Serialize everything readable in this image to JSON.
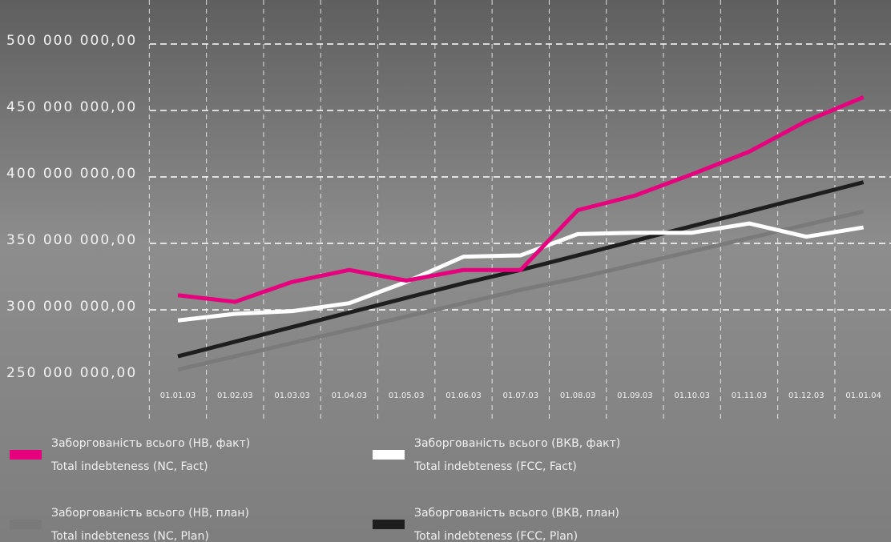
{
  "chart_data": {
    "type": "line",
    "categories": [
      "01.01.03",
      "01.02.03",
      "01.03.03",
      "01.04.03",
      "01.05.03",
      "01.06.03",
      "01.07.03",
      "01.08.03",
      "01.09.03",
      "01.10.03",
      "01.11.03",
      "01.12.03",
      "01.01.04"
    ],
    "ylim": [
      250000000,
      500000000
    ],
    "yticks": [
      {
        "value": 250000000,
        "label": "250 000 000,00"
      },
      {
        "value": 300000000,
        "label": "300 000 000,00"
      },
      {
        "value": 350000000,
        "label": "350 000 000,00"
      },
      {
        "value": 400000000,
        "label": "400 000 000,00"
      },
      {
        "value": 450000000,
        "label": "450 000 000,00"
      },
      {
        "value": 500000000,
        "label": "500 000 000,00"
      }
    ],
    "grid": true,
    "series": [
      {
        "name": "Заборгованість всього (НВ, факт)",
        "name_en": "Total indebteness (NC, Fact)",
        "color": "#e6007e",
        "values": [
          311000000,
          306000000,
          321000000,
          330000000,
          322000000,
          330000000,
          330000000,
          375000000,
          386000000,
          402000000,
          419000000,
          442000000,
          460000000
        ]
      },
      {
        "name": "Заборгованість всього (ВКВ, факт)",
        "name_en": "Total indebteness (FCC, Fact)",
        "color": "#ffffff",
        "values": [
          292000000,
          297000000,
          299000000,
          305000000,
          321000000,
          340000000,
          341000000,
          357000000,
          358000000,
          358000000,
          365000000,
          355000000,
          362000000
        ]
      },
      {
        "name": "Заборгованість всього (НВ, план)",
        "name_en": "Total indebteness (NC, Plan)",
        "color": "#7a7a7a",
        "values": [
          255000000,
          265000000,
          275000000,
          285000000,
          295000000,
          305000000,
          315000000,
          324000000,
          334000000,
          344000000,
          354000000,
          364000000,
          374000000
        ]
      },
      {
        "name": "Заборгованість всього (ВКВ, план)",
        "name_en": "Total indebteness (FCC, Plan)",
        "color": "#1e1e1e",
        "values": [
          265000000,
          276000000,
          287000000,
          298000000,
          309000000,
          320000000,
          330000000,
          341000000,
          352000000,
          363000000,
          374000000,
          385000000,
          396000000
        ]
      }
    ]
  }
}
